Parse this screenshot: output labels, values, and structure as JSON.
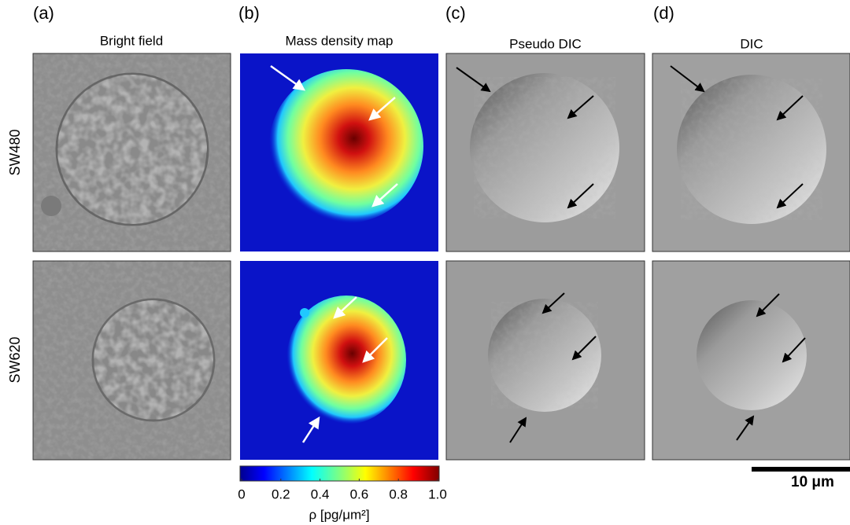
{
  "panels": [
    {
      "label": "(a)",
      "title": "Bright field"
    },
    {
      "label": "(b)",
      "title": "Mass density map"
    },
    {
      "label": "(c)",
      "title": "Pseudo DIC"
    },
    {
      "label": "(d)",
      "title": "DIC"
    }
  ],
  "rows": [
    "SW480",
    "SW620"
  ],
  "colorbar": {
    "range": [
      0,
      1
    ],
    "ticks": [
      0,
      0.2,
      0.4,
      0.6,
      0.8,
      {
        "value": 1,
        "label": "1.0"
      }
    ],
    "label": "ρ [pg/μm²]"
  },
  "scale_bar": {
    "label": "10 μm"
  }
}
